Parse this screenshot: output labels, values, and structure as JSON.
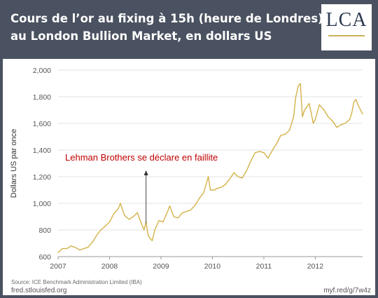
{
  "header": {
    "title_line1": "Cours de l’or au fixing à 15h (heure de Londres)",
    "title_line2": "au London Bullion Market, en dollars US",
    "logo_text": "LCA"
  },
  "footer": {
    "source": "Source: ICE Benchmark Administration Limited (IBA)",
    "site": "fred.stlouisfed.org",
    "short_link": "myf.red/g/7w4z"
  },
  "chart_data": {
    "type": "line",
    "title": "",
    "xlabel": "",
    "ylabel": "Dollars US par once",
    "xlim": [
      2007,
      2012.92
    ],
    "ylim": [
      600,
      2000
    ],
    "yticks": [
      600,
      800,
      1000,
      1200,
      1400,
      1600,
      1800,
      2000
    ],
    "ytick_labels": [
      "600",
      "800",
      "1,000",
      "1,200",
      "1,400",
      "1,600",
      "1,800",
      "2,000"
    ],
    "xticks": [
      2007,
      2008,
      2009,
      2010,
      2011,
      2012
    ],
    "xtick_labels": [
      "2007",
      "2008",
      "2009",
      "2010",
      "2011",
      "2012"
    ],
    "grid": "horizontal",
    "line_color": "#d4b24a",
    "series": [
      {
        "x": [
          2007.0,
          2007.08,
          2007.17,
          2007.25,
          2007.33,
          2007.42,
          2007.5,
          2007.58,
          2007.67,
          2007.75,
          2007.83,
          2007.92,
          2008.0,
          2008.08,
          2008.17,
          2008.21,
          2008.29,
          2008.38,
          2008.46,
          2008.54,
          2008.62,
          2008.67,
          2008.71,
          2008.75,
          2008.8,
          2008.83,
          2008.88,
          2008.96,
          2009.04,
          2009.13,
          2009.17,
          2009.25,
          2009.33,
          2009.42,
          2009.5,
          2009.58,
          2009.67,
          2009.75,
          2009.83,
          2009.92,
          2009.96,
          2010.04,
          2010.08,
          2010.17,
          2010.25,
          2010.33,
          2010.42,
          2010.5,
          2010.58,
          2010.67,
          2010.75,
          2010.83,
          2010.92,
          2011.0,
          2011.08,
          2011.17,
          2011.25,
          2011.33,
          2011.42,
          2011.5,
          2011.58,
          2011.62,
          2011.67,
          2011.71,
          2011.75,
          2011.79,
          2011.83,
          2011.88,
          2011.92,
          2011.96,
          2012.0,
          2012.08,
          2012.17,
          2012.25,
          2012.33,
          2012.42,
          2012.5,
          2012.58,
          2012.67,
          2012.71,
          2012.75,
          2012.79,
          2012.83,
          2012.88,
          2012.92
        ],
        "y": [
          630,
          660,
          660,
          680,
          670,
          650,
          660,
          670,
          710,
          760,
          800,
          830,
          860,
          920,
          960,
          1000,
          910,
          880,
          900,
          930,
          850,
          800,
          860,
          760,
          730,
          720,
          800,
          870,
          860,
          940,
          980,
          900,
          890,
          930,
          940,
          950,
          990,
          1040,
          1080,
          1200,
          1100,
          1100,
          1110,
          1120,
          1140,
          1180,
          1230,
          1200,
          1190,
          1250,
          1320,
          1380,
          1390,
          1380,
          1340,
          1400,
          1450,
          1510,
          1520,
          1550,
          1650,
          1800,
          1880,
          1900,
          1650,
          1700,
          1720,
          1750,
          1680,
          1600,
          1630,
          1740,
          1700,
          1650,
          1620,
          1570,
          1590,
          1600,
          1630,
          1680,
          1760,
          1780,
          1740,
          1700,
          1670
        ]
      }
    ],
    "annotations": [
      {
        "text": "Lehman Brothers se déclare en faillite",
        "x": 2008.71,
        "y_tip": 850,
        "text_color": "#c00000"
      }
    ]
  }
}
